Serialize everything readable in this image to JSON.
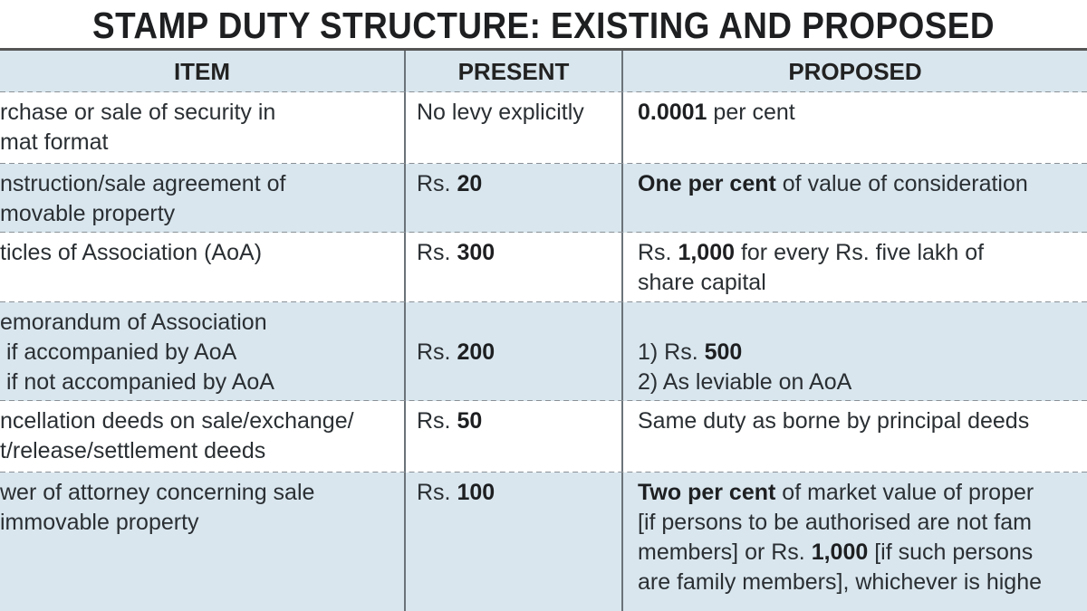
{
  "title": "STAMP DUTY STRUCTURE: EXISTING AND PROPOSED",
  "headers": [
    "ITEM",
    "PRESENT",
    "PROPOSED"
  ],
  "colors": {
    "row_shade": "#d9e6ee",
    "row_plain": "#ffffff",
    "text": "#2a2f33"
  },
  "rows": [
    {
      "item": [
        [
          {
            "t": "rchase or sale of security in"
          }
        ],
        [
          {
            "t": "mat format"
          }
        ]
      ],
      "present": [
        [
          {
            "t": "No levy explicitly"
          }
        ]
      ],
      "proposed": [
        [
          {
            "t": "0.0001",
            "b": true
          },
          {
            "t": " per cent"
          }
        ]
      ]
    },
    {
      "item": [
        [
          {
            "t": "nstruction/sale agreement of"
          }
        ],
        [
          {
            "t": "movable property"
          }
        ]
      ],
      "present": [
        [
          {
            "t": "Rs. "
          },
          {
            "t": "20",
            "b": true
          }
        ]
      ],
      "proposed": [
        [
          {
            "t": "One per cent",
            "b": true
          },
          {
            "t": " of value of consideration"
          }
        ]
      ]
    },
    {
      "item": [
        [
          {
            "t": "ticles of Association (AoA)"
          }
        ]
      ],
      "present": [
        [
          {
            "t": "Rs. "
          },
          {
            "t": "300",
            "b": true
          }
        ]
      ],
      "proposed": [
        [
          {
            "t": "Rs. "
          },
          {
            "t": "1,000",
            "b": true
          },
          {
            "t": " for every Rs. five lakh of"
          }
        ],
        [
          {
            "t": "share capital"
          }
        ]
      ]
    },
    {
      "item": [
        [
          {
            "t": "emorandum of Association"
          }
        ],
        [
          {
            "t": " if accompanied by AoA"
          }
        ],
        [
          {
            "t": " if not accompanied by AoA"
          }
        ]
      ],
      "present": [
        [
          {
            "t": ""
          }
        ],
        [
          {
            "t": "Rs. "
          },
          {
            "t": "200",
            "b": true
          }
        ]
      ],
      "proposed": [
        [
          {
            "t": ""
          }
        ],
        [
          {
            "t": "1) Rs. "
          },
          {
            "t": "500",
            "b": true
          }
        ],
        [
          {
            "t": "2) As leviable on AoA"
          }
        ]
      ]
    },
    {
      "item": [
        [
          {
            "t": "ncellation deeds on sale/exchange/"
          }
        ],
        [
          {
            "t": "t/release/settlement deeds"
          }
        ]
      ],
      "present": [
        [
          {
            "t": "Rs. "
          },
          {
            "t": "50",
            "b": true
          }
        ]
      ],
      "proposed": [
        [
          {
            "t": "Same duty as borne by principal deeds"
          }
        ]
      ]
    },
    {
      "item": [
        [
          {
            "t": "wer of attorney concerning sale"
          }
        ],
        [
          {
            "t": "immovable property"
          }
        ]
      ],
      "present": [
        [
          {
            "t": "Rs. "
          },
          {
            "t": "100",
            "b": true
          }
        ]
      ],
      "proposed": [
        [
          {
            "t": "Two per cent",
            "b": true
          },
          {
            "t": " of market value of proper"
          }
        ],
        [
          {
            "t": "[if persons to be authorised are not fam"
          }
        ],
        [
          {
            "t": "members] or Rs. "
          },
          {
            "t": "1,000",
            "b": true
          },
          {
            "t": " [if such persons"
          }
        ],
        [
          {
            "t": "are family members], whichever is highe"
          }
        ]
      ]
    }
  ]
}
